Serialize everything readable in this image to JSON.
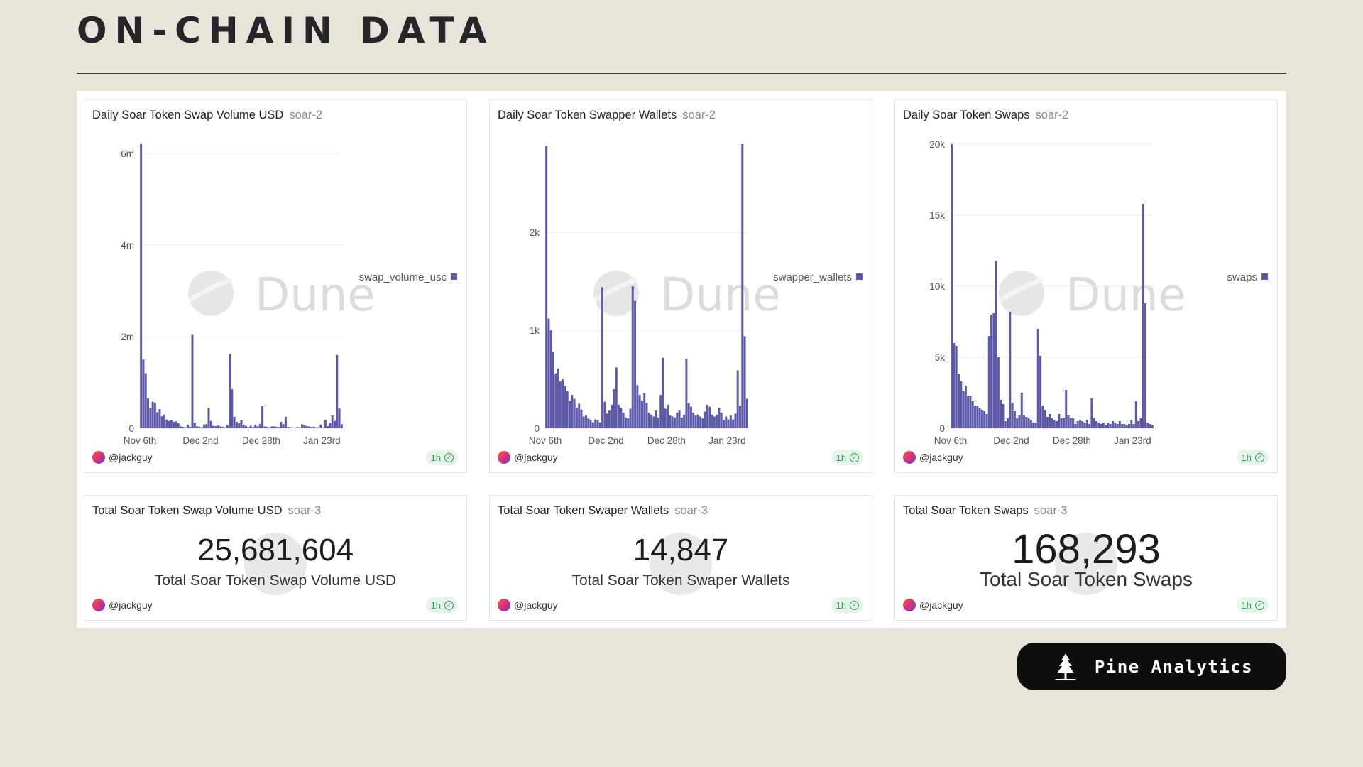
{
  "page": {
    "title": "ON-CHAIN DATA"
  },
  "watermark": "Dune",
  "brand": {
    "name": "Pine Analytics"
  },
  "charts": [
    {
      "title": "Daily Soar Token Swap Volume USD",
      "subtitle": "soar-2",
      "user": "@jackguy",
      "badge": "1h",
      "legend": "swap_volume_usc",
      "y_ticks": [
        "0",
        "2m",
        "4m",
        "6m"
      ],
      "x_ticks": [
        "Nov 6th",
        "Dec 2nd",
        "Dec 28th",
        "Jan 23rd"
      ]
    },
    {
      "title": "Daily Soar Token Swapper Wallets",
      "subtitle": "soar-2",
      "user": "@jackguy",
      "badge": "1h",
      "legend": "swapper_wallets",
      "y_ticks": [
        "0",
        "1k",
        "2k"
      ],
      "x_ticks": [
        "Nov 6th",
        "Dec 2nd",
        "Dec 28th",
        "Jan 23rd"
      ]
    },
    {
      "title": "Daily Soar Token Swaps",
      "subtitle": "soar-2",
      "user": "@jackguy",
      "badge": "1h",
      "legend": "swaps",
      "y_ticks": [
        "0",
        "5k",
        "10k",
        "15k",
        "20k"
      ],
      "x_ticks": [
        "Nov 6th",
        "Dec 2nd",
        "Dec 28th",
        "Jan 23rd"
      ]
    }
  ],
  "counters": [
    {
      "title": "Total Soar Token Swap Volume USD",
      "subtitle": "soar-3",
      "value": "25,681,604",
      "label": "Total Soar Token Swap Volume USD",
      "user": "@jackguy",
      "badge": "1h"
    },
    {
      "title": "Total Soar Token Swaper Wallets",
      "subtitle": "soar-3",
      "value": "14,847",
      "label": "Total Soar Token Swaper Wallets",
      "user": "@jackguy",
      "badge": "1h"
    },
    {
      "title": "Total Soar Token Swaps",
      "subtitle": "soar-3",
      "value": "168,293",
      "label": "Total Soar Token Swaps",
      "user": "@jackguy",
      "badge": "1h"
    }
  ],
  "chart_data": [
    {
      "type": "bar",
      "title": "Daily Soar Token Swap Volume USD",
      "series": [
        {
          "name": "swap_volume_usc",
          "color": "#5c5aa8"
        }
      ],
      "x_range": [
        "Nov 6th",
        "Jan 26th"
      ],
      "ylim": [
        0,
        6200000
      ],
      "values": [
        6250000,
        1500000,
        1200000,
        650000,
        450000,
        580000,
        560000,
        350000,
        420000,
        260000,
        300000,
        190000,
        160000,
        170000,
        140000,
        150000,
        110000,
        40000,
        30000,
        20000,
        80000,
        35000,
        2040000,
        120000,
        45000,
        35000,
        20000,
        80000,
        90000,
        450000,
        160000,
        55000,
        45000,
        60000,
        40000,
        30000,
        20000,
        70000,
        1620000,
        850000,
        250000,
        140000,
        110000,
        170000,
        75000,
        50000,
        25000,
        55000,
        25000,
        80000,
        40000,
        90000,
        480000,
        40000,
        30000,
        20000,
        40000,
        40000,
        35000,
        25000,
        140000,
        90000,
        250000,
        30000,
        25000,
        20000,
        15000,
        30000,
        20000,
        90000,
        70000,
        50000,
        40000,
        30000,
        35000,
        20000,
        20000,
        80000,
        20000,
        180000,
        45000,
        110000,
        280000,
        160000,
        1600000,
        430000,
        90000
      ],
      "grid": true,
      "legend": "right"
    },
    {
      "type": "bar",
      "title": "Daily Soar Token Swapper Wallets",
      "series": [
        {
          "name": "swapper_wallets",
          "color": "#5c5aa8"
        }
      ],
      "x_range": [
        "Nov 6th",
        "Jan 26th"
      ],
      "ylim": [
        0,
        2900
      ],
      "values": [
        2880,
        1120,
        1000,
        780,
        560,
        610,
        480,
        500,
        430,
        380,
        280,
        340,
        300,
        210,
        250,
        190,
        120,
        130,
        100,
        80,
        60,
        90,
        80,
        60,
        1440,
        270,
        150,
        180,
        240,
        400,
        620,
        240,
        210,
        160,
        110,
        100,
        200,
        1450,
        1300,
        440,
        340,
        280,
        360,
        260,
        160,
        140,
        120,
        180,
        110,
        340,
        720,
        200,
        240,
        130,
        120,
        110,
        160,
        180,
        110,
        140,
        710,
        260,
        220,
        160,
        130,
        140,
        120,
        100,
        170,
        240,
        220,
        140,
        120,
        140,
        210,
        160,
        80,
        120,
        90,
        130,
        90,
        150,
        590,
        230,
        2940,
        940,
        300
      ],
      "grid": true,
      "legend": "right"
    },
    {
      "type": "bar",
      "title": "Daily Soar Token Swaps",
      "series": [
        {
          "name": "swaps",
          "color": "#5c5aa8"
        }
      ],
      "x_range": [
        "Nov 6th",
        "Jan 26th"
      ],
      "ylim": [
        0,
        20000
      ],
      "values": [
        20000,
        6000,
        5800,
        3800,
        3300,
        2600,
        3000,
        2300,
        2300,
        1900,
        1600,
        1600,
        1400,
        1300,
        1200,
        1000,
        6500,
        8000,
        8100,
        11800,
        5000,
        2000,
        1700,
        500,
        700,
        8200,
        1800,
        1200,
        700,
        900,
        2500,
        900,
        800,
        700,
        600,
        400,
        400,
        7000,
        5100,
        1600,
        1300,
        800,
        1000,
        700,
        600,
        500,
        1000,
        700,
        700,
        2700,
        900,
        700,
        700,
        300,
        500,
        600,
        500,
        400,
        600,
        300,
        2100,
        700,
        500,
        400,
        300,
        400,
        200,
        400,
        300,
        500,
        400,
        300,
        500,
        300,
        300,
        200,
        300,
        600,
        300,
        1900,
        500,
        700,
        15800,
        8800,
        400,
        300,
        200
      ],
      "grid": true,
      "legend": "right"
    }
  ]
}
